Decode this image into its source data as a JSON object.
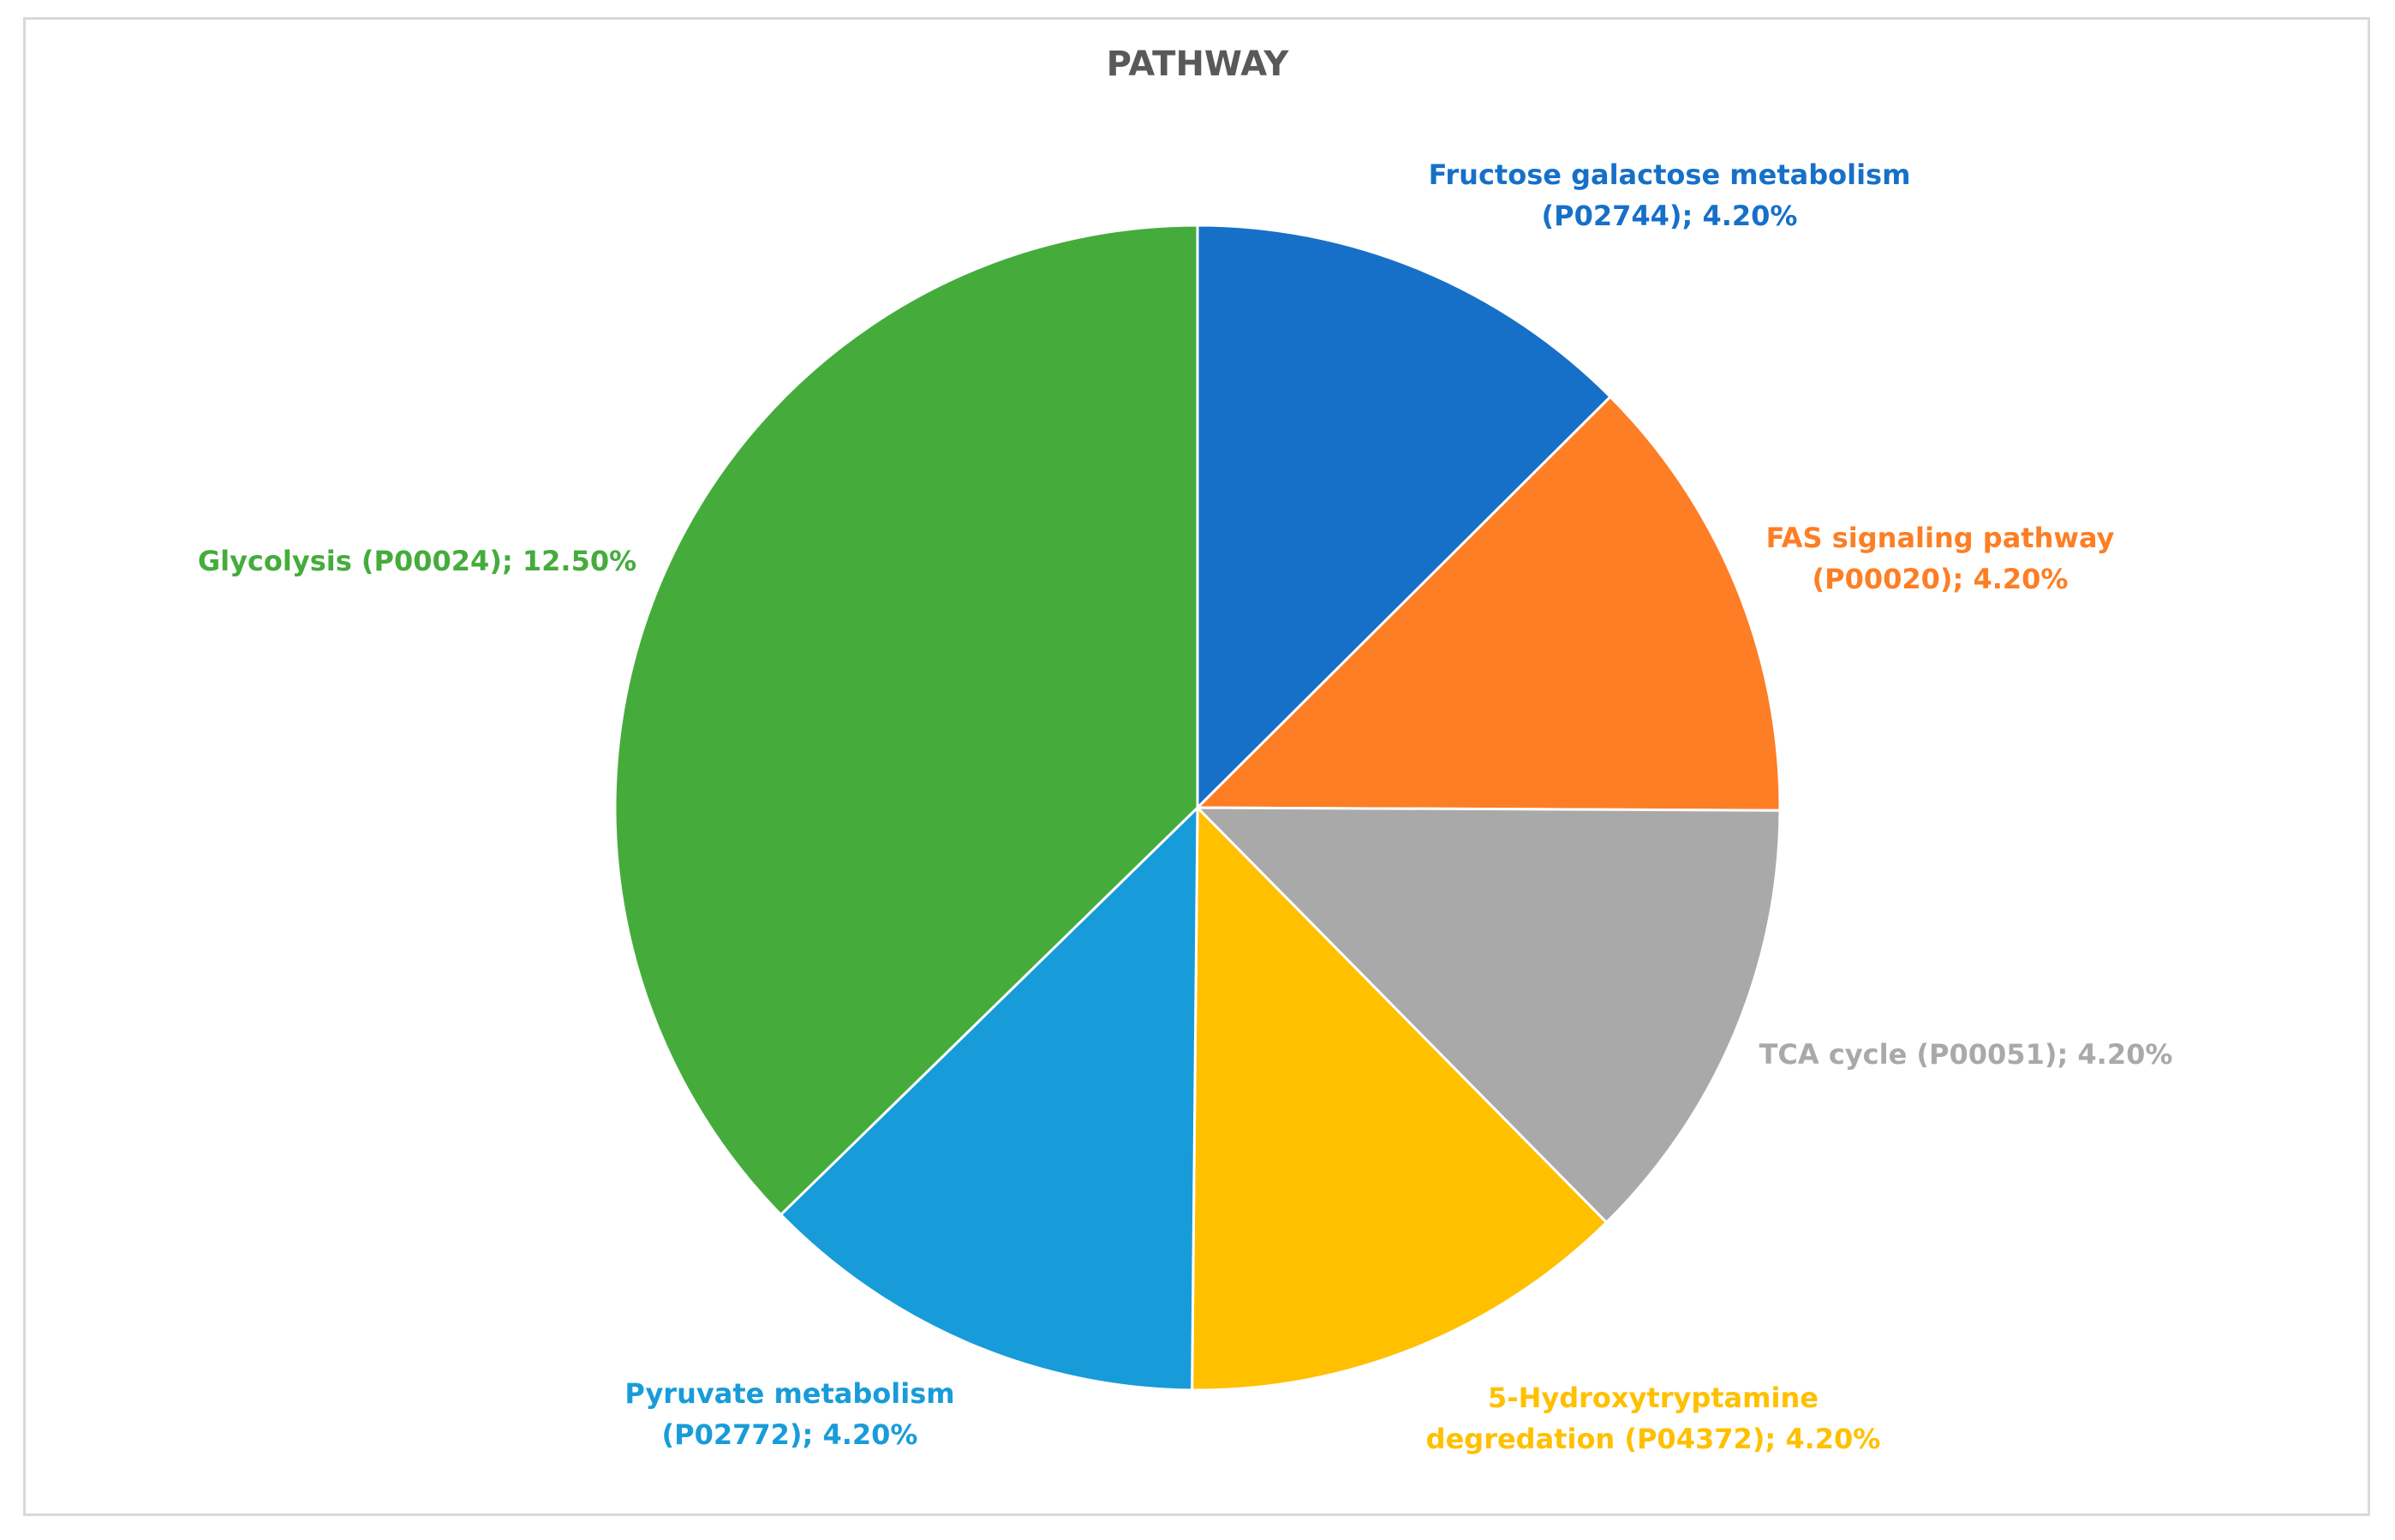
{
  "chart_data": {
    "type": "pie",
    "title": "PATHWAY",
    "start_angle_deg": 0,
    "direction": "clockwise",
    "slices": [
      {
        "lines": [
          "Fructose galactose metabolism",
          "(P02744); 4.20%"
        ],
        "value": 4.2,
        "color": "#1770c8"
      },
      {
        "lines": [
          "FAS signaling pathway",
          "(P00020); 4.20%"
        ],
        "value": 4.2,
        "color": "#fd7e25"
      },
      {
        "lines": [
          "TCA cycle (P00051); 4.20%"
        ],
        "value": 4.2,
        "color": "#a9a9a9"
      },
      {
        "lines": [
          "5-Hydroxytryptamine",
          "degredation (P04372); 4.20%"
        ],
        "value": 4.2,
        "color": "#ffc000"
      },
      {
        "lines": [
          "Pyruvate metabolism",
          "(P02772); 4.20%"
        ],
        "value": 4.2,
        "color": "#189cd9"
      },
      {
        "lines": [
          "Glycolysis (P00024); 12.50%"
        ],
        "value": 12.5,
        "color": "#45ac3c"
      }
    ]
  }
}
